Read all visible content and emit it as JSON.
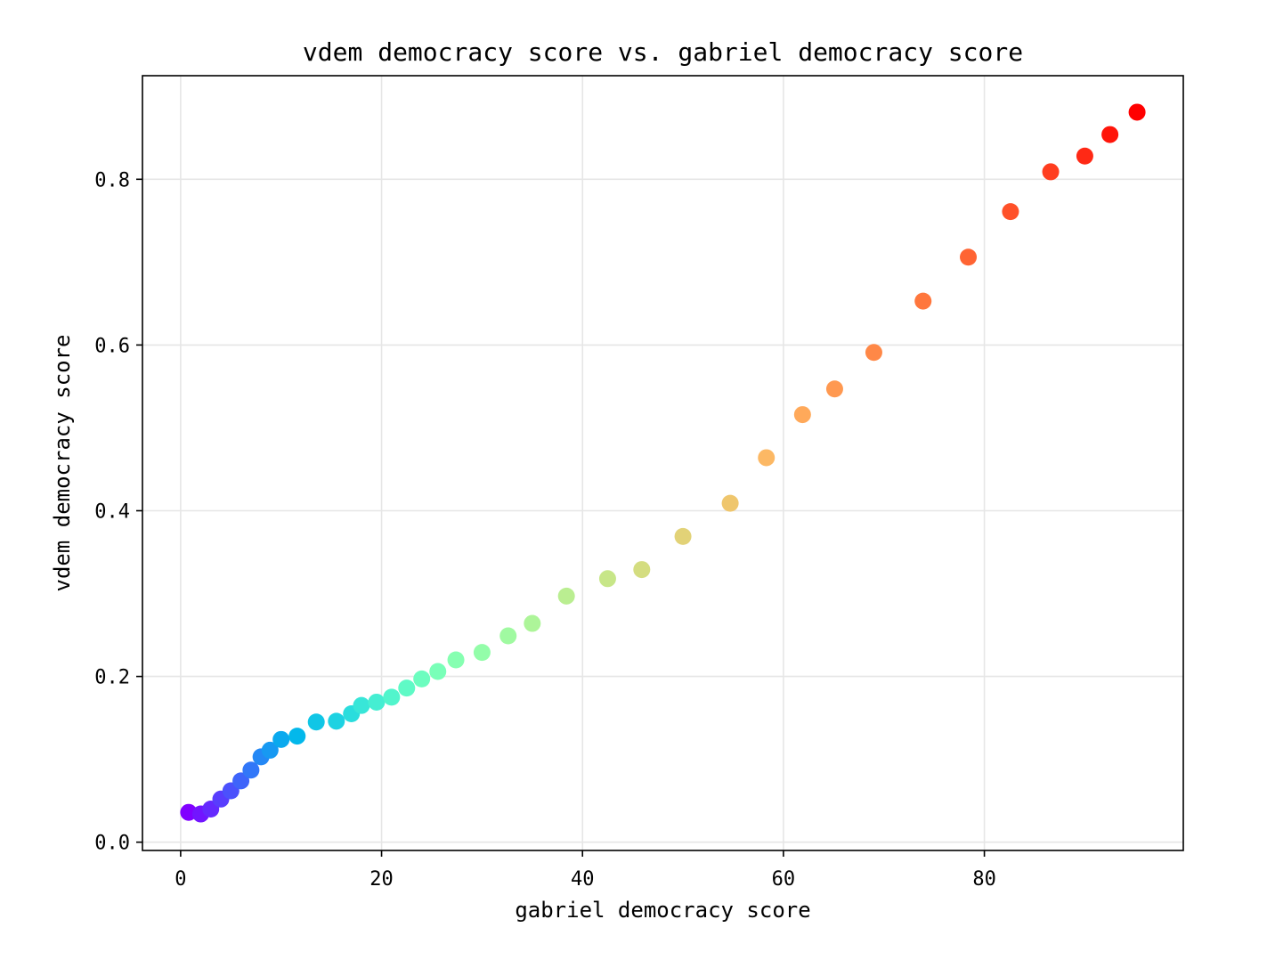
{
  "chart_data": {
    "type": "scatter",
    "title": "vdem democracy score vs. gabriel democracy score",
    "xlabel": "gabriel democracy score",
    "ylabel": "vdem democracy score",
    "xlim": [
      -3.8,
      99.8
    ],
    "ylim": [
      -0.01,
      0.925
    ],
    "xticks": [
      0,
      20,
      40,
      60,
      80
    ],
    "xtick_labels": [
      "0",
      "20",
      "40",
      "60",
      "80"
    ],
    "yticks": [
      0.0,
      0.2,
      0.4,
      0.6,
      0.8
    ],
    "ytick_labels": [
      "0.0",
      "0.2",
      "0.4",
      "0.6",
      "0.8"
    ],
    "grid": true,
    "colormap": "rainbow",
    "points": [
      {
        "x": 0.8,
        "y": 0.036
      },
      {
        "x": 2.0,
        "y": 0.034
      },
      {
        "x": 3.0,
        "y": 0.04
      },
      {
        "x": 4.0,
        "y": 0.052
      },
      {
        "x": 5.0,
        "y": 0.062
      },
      {
        "x": 6.0,
        "y": 0.074
      },
      {
        "x": 7.0,
        "y": 0.087
      },
      {
        "x": 8.0,
        "y": 0.103
      },
      {
        "x": 8.9,
        "y": 0.111
      },
      {
        "x": 10.0,
        "y": 0.124
      },
      {
        "x": 11.6,
        "y": 0.128
      },
      {
        "x": 13.5,
        "y": 0.145
      },
      {
        "x": 15.5,
        "y": 0.146
      },
      {
        "x": 17.0,
        "y": 0.155
      },
      {
        "x": 18.0,
        "y": 0.165
      },
      {
        "x": 19.5,
        "y": 0.169
      },
      {
        "x": 21.0,
        "y": 0.175
      },
      {
        "x": 22.5,
        "y": 0.186
      },
      {
        "x": 24.0,
        "y": 0.197
      },
      {
        "x": 25.6,
        "y": 0.206
      },
      {
        "x": 27.4,
        "y": 0.22
      },
      {
        "x": 30.0,
        "y": 0.229
      },
      {
        "x": 32.6,
        "y": 0.249
      },
      {
        "x": 35.0,
        "y": 0.264
      },
      {
        "x": 38.4,
        "y": 0.297
      },
      {
        "x": 42.5,
        "y": 0.318
      },
      {
        "x": 45.9,
        "y": 0.329
      },
      {
        "x": 50.0,
        "y": 0.369
      },
      {
        "x": 54.7,
        "y": 0.409
      },
      {
        "x": 58.3,
        "y": 0.464
      },
      {
        "x": 61.9,
        "y": 0.516
      },
      {
        "x": 65.1,
        "y": 0.547
      },
      {
        "x": 69.0,
        "y": 0.591
      },
      {
        "x": 73.9,
        "y": 0.653
      },
      {
        "x": 78.4,
        "y": 0.706
      },
      {
        "x": 82.6,
        "y": 0.761
      },
      {
        "x": 86.6,
        "y": 0.809
      },
      {
        "x": 90.0,
        "y": 0.828
      },
      {
        "x": 92.5,
        "y": 0.854
      },
      {
        "x": 95.2,
        "y": 0.881
      }
    ]
  }
}
